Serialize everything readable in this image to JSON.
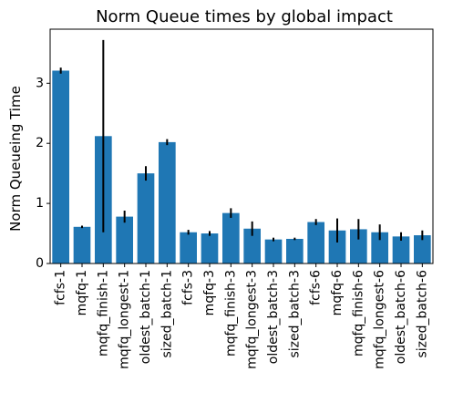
{
  "chart_data": {
    "type": "bar",
    "title": "Norm Queue times by global impact",
    "xlabel": "",
    "ylabel": "Norm Queueing Time",
    "ylim": [
      0,
      3.9
    ],
    "yticks": [
      0,
      1,
      2,
      3
    ],
    "grid": false,
    "bar_color": "#1f77b4",
    "error_color": "#000000",
    "categories": [
      "fcfs-1",
      "mqfq-1",
      "mqfq_finish-1",
      "mqfq_longest-1",
      "oldest_batch-1",
      "sized_batch-1",
      "fcfs-3",
      "mqfq-3",
      "mqfq_finish-3",
      "mqfq_longest-3",
      "oldest_batch-3",
      "sized_batch-3",
      "fcfs-6",
      "mqfq-6",
      "mqfq_finish-6",
      "mqfq_longest-6",
      "oldest_batch-6",
      "sized_batch-6"
    ],
    "values": [
      3.21,
      0.61,
      2.12,
      0.78,
      1.5,
      2.02,
      0.52,
      0.5,
      0.84,
      0.58,
      0.4,
      0.41,
      0.69,
      0.55,
      0.57,
      0.52,
      0.45,
      0.47
    ],
    "errors": [
      0.05,
      0.02,
      1.6,
      0.1,
      0.12,
      0.05,
      0.04,
      0.04,
      0.08,
      0.12,
      0.03,
      0.02,
      0.05,
      0.2,
      0.17,
      0.13,
      0.07,
      0.08
    ]
  }
}
